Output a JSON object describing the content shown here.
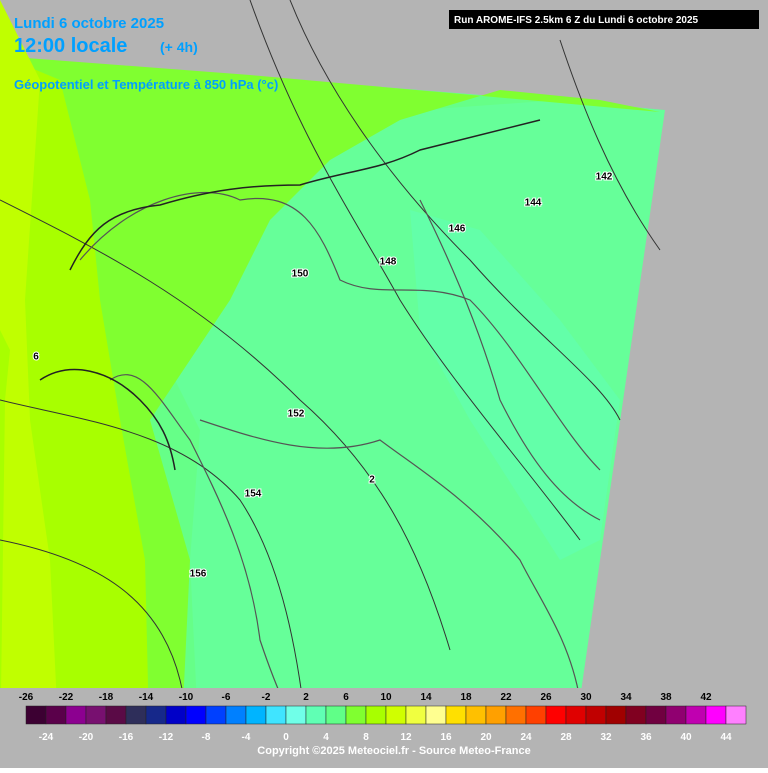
{
  "header": {
    "date": "Lundi 6 octobre 2025",
    "time": "12:00 locale",
    "offset": "(+ 4h)",
    "subtitle": "Géopotentiel et Température à 850 hPa (°c)"
  },
  "run_info": "Run AROME-IFS 2.5km 6 Z du Lundi 6 octobre 2025",
  "contour_labels": [
    "142",
    "144",
    "146",
    "148",
    "150",
    "152",
    "154",
    "156",
    "6",
    "2"
  ],
  "legend": {
    "ticks": [
      -26,
      -24,
      -22,
      -20,
      -18,
      -16,
      -14,
      -12,
      -10,
      -8,
      -6,
      -4,
      -2,
      0,
      2,
      4,
      6,
      8,
      10,
      12,
      14,
      16,
      18,
      20,
      22,
      24,
      26,
      28,
      30,
      32,
      34,
      36,
      38,
      40,
      42,
      44
    ],
    "colors": [
      "#3c0032",
      "#5a004a",
      "#8c0090",
      "#781070",
      "#5a0a46",
      "#2e2e5a",
      "#16288a",
      "#0000c8",
      "#0000ff",
      "#0040ff",
      "#0080ff",
      "#00b4ff",
      "#40e4ff",
      "#70ffe8",
      "#60ffb4",
      "#60ff88",
      "#80ff30",
      "#a8ff00",
      "#d0ff00",
      "#f0ff40",
      "#ffff90",
      "#ffe000",
      "#ffc000",
      "#ffa000",
      "#ff7000",
      "#ff4000",
      "#ff0000",
      "#e00000",
      "#c00000",
      "#a00000",
      "#800020",
      "#700040",
      "#900070",
      "#c000b0",
      "#ff00ff",
      "#ff80ff"
    ]
  },
  "copyright": "Copyright ©2025 Meteociel.fr - Source Meteo-France"
}
